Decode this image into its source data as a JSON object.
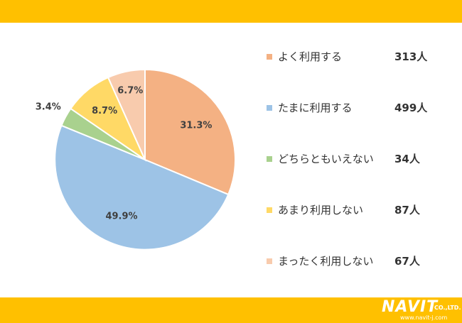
{
  "chart_data": {
    "type": "pie",
    "slices": [
      {
        "label": "よく利用する",
        "count": "313人",
        "value": 31.3,
        "display": "31.3%",
        "color": "#f4b183"
      },
      {
        "label": "たまに利用する",
        "count": "499人",
        "value": 49.9,
        "display": "49.9%",
        "color": "#9dc3e6"
      },
      {
        "label": "どちらともいえない",
        "count": "34人",
        "value": 3.4,
        "display": "3.4%",
        "color": "#a9d18e"
      },
      {
        "label": "あまり利用しない",
        "count": "87人",
        "value": 8.7,
        "display": "8.7%",
        "color": "#ffd966"
      },
      {
        "label": "まったく利用しない",
        "count": "67人",
        "value": 6.7,
        "display": "6.7%",
        "color": "#f8cbad"
      }
    ],
    "start": "12 o'clock",
    "direction": "clockwise",
    "legend_placement": "right"
  },
  "logo": {
    "main": "NAVIT",
    "company": "CO.,LTD.",
    "url": "www.navit-j.com"
  },
  "colors": {
    "band": "#ffc000"
  }
}
